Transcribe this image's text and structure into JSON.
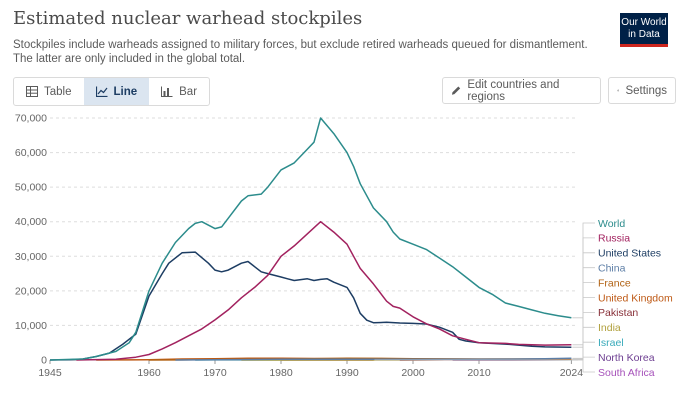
{
  "header": {
    "title": "Estimated nuclear warhead stockpiles",
    "subtitle": "Stockpiles include warheads assigned to military forces, but exclude retired warheads queued for dismantlement. The latter are only included in the global total.",
    "logo_line1": "Our World",
    "logo_line2": "in Data"
  },
  "toolbar": {
    "tabs": [
      {
        "label": "Table",
        "icon": "table-icon"
      },
      {
        "label": "Line",
        "icon": "line-chart-icon"
      },
      {
        "label": "Bar",
        "icon": "bar-chart-icon"
      }
    ],
    "active_tab": "Line",
    "edit_label": "Edit countries and regions",
    "settings_label": "Settings"
  },
  "colors": {
    "accent": "#1d3d63",
    "logo_bg": "#002147",
    "logo_bar": "#ce261e"
  },
  "chart_data": {
    "type": "line",
    "title": "Estimated nuclear warhead stockpiles",
    "xlabel": "",
    "ylabel": "",
    "xlim": [
      1945,
      2025
    ],
    "ylim": [
      0,
      70000
    ],
    "grid": true,
    "x_ticks": [
      1945,
      1960,
      1970,
      1980,
      1990,
      2000,
      2010,
      2024
    ],
    "y_ticks": [
      0,
      10000,
      20000,
      30000,
      40000,
      50000,
      60000,
      70000
    ],
    "y_tick_labels": [
      "0",
      "10,000",
      "20,000",
      "30,000",
      "40,000",
      "50,000",
      "60,000",
      "70,000"
    ],
    "legend_placement": "right",
    "series": [
      {
        "name": "World",
        "color": "#2c8c8c",
        "points": [
          [
            1945,
            2
          ],
          [
            1950,
            300
          ],
          [
            1952,
            1000
          ],
          [
            1955,
            2500
          ],
          [
            1957,
            5000
          ],
          [
            1958,
            8000
          ],
          [
            1960,
            20000
          ],
          [
            1962,
            28000
          ],
          [
            1964,
            34000
          ],
          [
            1966,
            38000
          ],
          [
            1967,
            39500
          ],
          [
            1968,
            40000
          ],
          [
            1970,
            38000
          ],
          [
            1971,
            38500
          ],
          [
            1972,
            41000
          ],
          [
            1974,
            46000
          ],
          [
            1975,
            47500
          ],
          [
            1977,
            48000
          ],
          [
            1978,
            50000
          ],
          [
            1980,
            55000
          ],
          [
            1982,
            57000
          ],
          [
            1984,
            61000
          ],
          [
            1985,
            63000
          ],
          [
            1986,
            70000
          ],
          [
            1988,
            65500
          ],
          [
            1990,
            60000
          ],
          [
            1991,
            56000
          ],
          [
            1992,
            51000
          ],
          [
            1994,
            44000
          ],
          [
            1996,
            40000
          ],
          [
            1997,
            37000
          ],
          [
            1998,
            35000
          ],
          [
            2000,
            33500
          ],
          [
            2002,
            32000
          ],
          [
            2004,
            29500
          ],
          [
            2006,
            27000
          ],
          [
            2008,
            24000
          ],
          [
            2010,
            21000
          ],
          [
            2012,
            19000
          ],
          [
            2014,
            16500
          ],
          [
            2016,
            15500
          ],
          [
            2018,
            14500
          ],
          [
            2020,
            13500
          ],
          [
            2022,
            12800
          ],
          [
            2024,
            12200
          ]
        ]
      },
      {
        "name": "Russia",
        "color": "#a2225f",
        "points": [
          [
            1949,
            1
          ],
          [
            1955,
            200
          ],
          [
            1958,
            800
          ],
          [
            1960,
            1600
          ],
          [
            1962,
            3200
          ],
          [
            1964,
            5000
          ],
          [
            1966,
            7000
          ],
          [
            1968,
            9000
          ],
          [
            1970,
            11600
          ],
          [
            1972,
            14500
          ],
          [
            1974,
            18000
          ],
          [
            1976,
            21000
          ],
          [
            1978,
            24500
          ],
          [
            1980,
            30000
          ],
          [
            1982,
            33000
          ],
          [
            1984,
            36500
          ],
          [
            1986,
            40000
          ],
          [
            1988,
            37000
          ],
          [
            1990,
            33500
          ],
          [
            1991,
            30000
          ],
          [
            1992,
            26500
          ],
          [
            1994,
            22000
          ],
          [
            1996,
            17000
          ],
          [
            1997,
            15500
          ],
          [
            1998,
            15000
          ],
          [
            2000,
            12500
          ],
          [
            2002,
            10500
          ],
          [
            2004,
            9000
          ],
          [
            2006,
            7000
          ],
          [
            2008,
            6000
          ],
          [
            2010,
            5000
          ],
          [
            2014,
            4800
          ],
          [
            2016,
            4500
          ],
          [
            2020,
            4300
          ],
          [
            2024,
            4400
          ]
        ]
      },
      {
        "name": "United States",
        "color": "#1d3d63",
        "points": [
          [
            1945,
            2
          ],
          [
            1948,
            100
          ],
          [
            1950,
            300
          ],
          [
            1952,
            1000
          ],
          [
            1954,
            2000
          ],
          [
            1956,
            4500
          ],
          [
            1958,
            7500
          ],
          [
            1960,
            18500
          ],
          [
            1962,
            25000
          ],
          [
            1963,
            28000
          ],
          [
            1965,
            31000
          ],
          [
            1967,
            31200
          ],
          [
            1969,
            28000
          ],
          [
            1970,
            26000
          ],
          [
            1971,
            25500
          ],
          [
            1972,
            26000
          ],
          [
            1974,
            28000
          ],
          [
            1975,
            28500
          ],
          [
            1976,
            27000
          ],
          [
            1977,
            25500
          ],
          [
            1978,
            25000
          ],
          [
            1980,
            24000
          ],
          [
            1981,
            23500
          ],
          [
            1982,
            23000
          ],
          [
            1984,
            23500
          ],
          [
            1985,
            23000
          ],
          [
            1986,
            23300
          ],
          [
            1987,
            23500
          ],
          [
            1988,
            22500
          ],
          [
            1990,
            21000
          ],
          [
            1991,
            18000
          ],
          [
            1992,
            13500
          ],
          [
            1993,
            11500
          ],
          [
            1994,
            10800
          ],
          [
            1996,
            10900
          ],
          [
            1998,
            10700
          ],
          [
            2000,
            10600
          ],
          [
            2002,
            10400
          ],
          [
            2004,
            9500
          ],
          [
            2006,
            8000
          ],
          [
            2007,
            6000
          ],
          [
            2008,
            5500
          ],
          [
            2010,
            5000
          ],
          [
            2014,
            4600
          ],
          [
            2018,
            4000
          ],
          [
            2020,
            3800
          ],
          [
            2024,
            3700
          ]
        ]
      },
      {
        "name": "China",
        "color": "#5d7ea6",
        "points": [
          [
            1964,
            1
          ],
          [
            1970,
            100
          ],
          [
            1980,
            200
          ],
          [
            1990,
            230
          ],
          [
            2000,
            230
          ],
          [
            2010,
            240
          ],
          [
            2015,
            260
          ],
          [
            2020,
            350
          ],
          [
            2024,
            500
          ]
        ]
      },
      {
        "name": "France",
        "color": "#b16214",
        "points": [
          [
            1960,
            1
          ],
          [
            1965,
            30
          ],
          [
            1970,
            150
          ],
          [
            1975,
            200
          ],
          [
            1980,
            250
          ],
          [
            1985,
            360
          ],
          [
            1990,
            500
          ],
          [
            1995,
            450
          ],
          [
            2000,
            350
          ],
          [
            2010,
            300
          ],
          [
            2024,
            290
          ]
        ]
      },
      {
        "name": "United Kingdom",
        "color": "#be5915",
        "points": [
          [
            1952,
            1
          ],
          [
            1955,
            20
          ],
          [
            1960,
            70
          ],
          [
            1965,
            300
          ],
          [
            1970,
            380
          ],
          [
            1975,
            500
          ],
          [
            1980,
            500
          ],
          [
            1985,
            420
          ],
          [
            1990,
            400
          ],
          [
            1995,
            300
          ],
          [
            2000,
            260
          ],
          [
            2010,
            225
          ],
          [
            2024,
            225
          ]
        ]
      },
      {
        "name": "Pakistan",
        "color": "#883039",
        "points": [
          [
            1998,
            10
          ],
          [
            2005,
            50
          ],
          [
            2010,
            90
          ],
          [
            2015,
            120
          ],
          [
            2024,
            170
          ]
        ]
      },
      {
        "name": "India",
        "color": "#b1a03d",
        "points": [
          [
            1974,
            1
          ],
          [
            1998,
            10
          ],
          [
            2005,
            50
          ],
          [
            2010,
            80
          ],
          [
            2015,
            110
          ],
          [
            2024,
            170
          ]
        ]
      },
      {
        "name": "Israel",
        "color": "#38aaba",
        "points": [
          [
            1967,
            1
          ],
          [
            1970,
            20
          ],
          [
            1980,
            40
          ],
          [
            1990,
            60
          ],
          [
            2024,
            90
          ]
        ]
      },
      {
        "name": "North Korea",
        "color": "#6d3e91",
        "points": [
          [
            2006,
            2
          ],
          [
            2010,
            5
          ],
          [
            2015,
            10
          ],
          [
            2020,
            40
          ],
          [
            2024,
            50
          ]
        ]
      },
      {
        "name": "South Africa",
        "color": "#a652ba",
        "points": [
          [
            1980,
            1
          ],
          [
            1982,
            3
          ],
          [
            1989,
            6
          ],
          [
            1991,
            1
          ],
          [
            1994,
            0
          ]
        ]
      }
    ]
  }
}
